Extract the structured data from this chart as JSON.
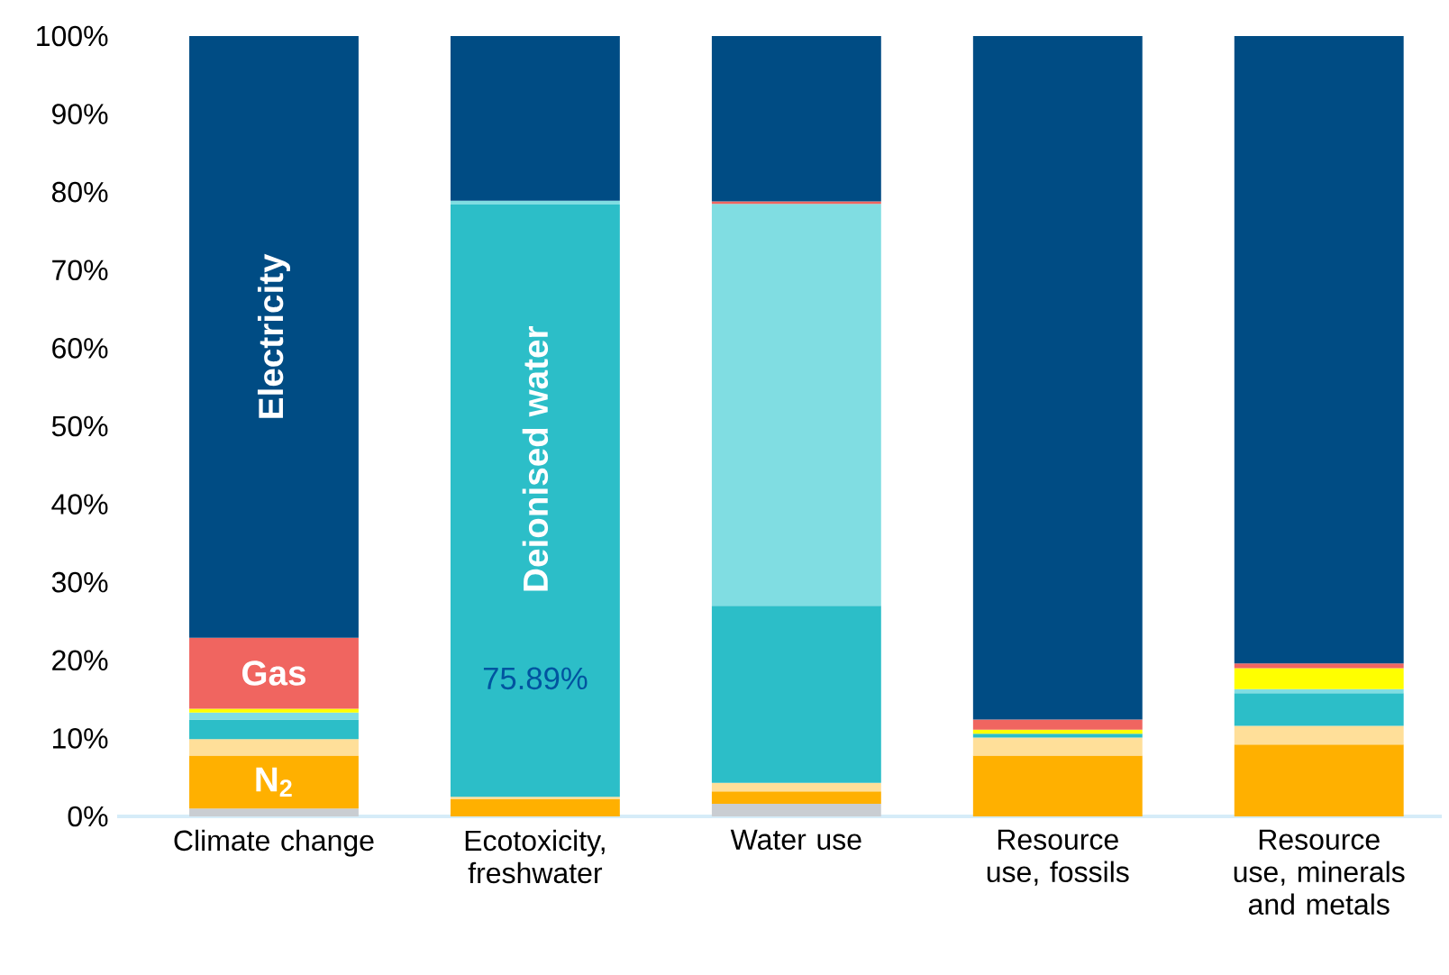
{
  "chart_data": {
    "type": "bar",
    "stacked": true,
    "categories": [
      "Climate change",
      "Ecotoxicity, freshwater",
      "Water use",
      "Resource use, fossils",
      "Resource use, minerals and metals"
    ],
    "series": [
      {
        "color": "#c9cdd2",
        "values": [
          1.0,
          null,
          1.6,
          null,
          null
        ]
      },
      {
        "name": "N$_{2}$",
        "color": "#ffb000",
        "values": [
          6.8,
          2.2,
          1.6,
          7.8,
          9.2
        ]
      },
      {
        "color": "#ffdf99",
        "values": [
          2.1,
          0.3,
          1.1,
          2.3,
          2.4
        ]
      },
      {
        "name": "Deionised water",
        "color": "#2cbec8",
        "values": [
          2.5,
          75.89,
          22.7,
          0.5,
          4.2
        ],
        "value_labels": [
          null,
          "75.89%",
          null,
          null,
          null
        ]
      },
      {
        "color": "#80dde2",
        "values": [
          0.9,
          0.5,
          51.5,
          null,
          0.5
        ]
      },
      {
        "color": "#ffff00",
        "values": [
          0.5,
          null,
          null,
          0.5,
          2.7
        ]
      },
      {
        "name": "Gas",
        "color": "#f06560",
        "values": [
          9.1,
          null,
          0.3,
          1.3,
          0.6
        ]
      },
      {
        "name": "Electricity",
        "color": "#004c84",
        "values": [
          77.1,
          21.1,
          21.2,
          87.6,
          80.4
        ]
      }
    ],
    "ylim": [
      0,
      100
    ],
    "yticks": [
      {
        "value": 0,
        "label": "0%"
      },
      {
        "value": 10,
        "label": "10%"
      },
      {
        "value": 20,
        "label": "20%"
      },
      {
        "value": 30,
        "label": "30%"
      },
      {
        "value": 40,
        "label": "40%"
      },
      {
        "value": 50,
        "label": "50%"
      },
      {
        "value": 60,
        "label": "60%"
      },
      {
        "value": 70,
        "label": "70%"
      },
      {
        "value": 80,
        "label": "80%"
      },
      {
        "value": 90,
        "label": "90%"
      },
      {
        "value": 100,
        "label": "100%"
      }
    ],
    "grid": false
  }
}
